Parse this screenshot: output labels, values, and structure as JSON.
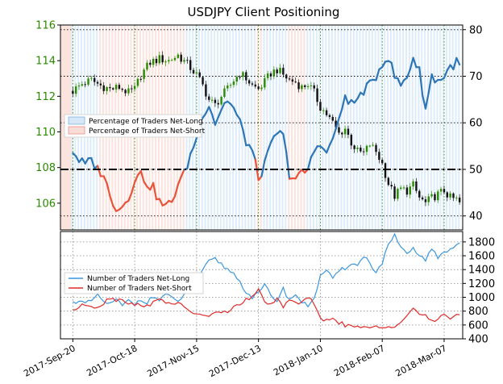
{
  "chart_data": [
    {
      "type": "candlestick+line",
      "title": "USDJPY Client Positioning",
      "left_axis": {
        "ylim": [
          104.5,
          116
        ],
        "ticks": [
          106,
          108,
          110,
          112,
          114,
          116
        ],
        "color": "#2a8a00"
      },
      "right_axis": {
        "ylim": [
          37,
          81
        ],
        "ticks": [
          40,
          50,
          60,
          70,
          80
        ]
      },
      "reference_line_pct": 50,
      "legend": [
        "Percentage of Traders Net-Long",
        "Percentage of Traders Net-Short"
      ],
      "colors": {
        "net_long": "#2e75b6",
        "net_short": "#e8533a",
        "long_fill": "#d6e8f7",
        "short_fill": "#fadcd6",
        "candle_up": "#2a8a00",
        "candle_down": "#111111"
      },
      "price_keypoints": [
        [
          0,
          112.3
        ],
        [
          3,
          112.7
        ],
        [
          6,
          112.9
        ],
        [
          9,
          112.6
        ],
        [
          12,
          112.4
        ],
        [
          15,
          112.5
        ],
        [
          18,
          112.2
        ],
        [
          20,
          112.4
        ],
        [
          22,
          113.2
        ],
        [
          25,
          113.9
        ],
        [
          28,
          114.1
        ],
        [
          31,
          114.0
        ],
        [
          34,
          114.3
        ],
        [
          37,
          113.8
        ],
        [
          40,
          113.2
        ],
        [
          42,
          112.6
        ],
        [
          44,
          111.8
        ],
        [
          46,
          111.5
        ],
        [
          48,
          112.0
        ],
        [
          50,
          112.4
        ],
        [
          52,
          112.9
        ],
        [
          54,
          113.3
        ],
        [
          56,
          113.0
        ],
        [
          58,
          112.6
        ],
        [
          60,
          112.4
        ],
        [
          62,
          112.8
        ],
        [
          64,
          113.3
        ],
        [
          66,
          113.5
        ],
        [
          68,
          113.2
        ],
        [
          70,
          112.9
        ],
        [
          72,
          112.8
        ],
        [
          74,
          112.5
        ],
        [
          76,
          112.7
        ],
        [
          78,
          112.2
        ],
        [
          80,
          111.4
        ],
        [
          82,
          111.0
        ],
        [
          84,
          110.5
        ],
        [
          86,
          109.9
        ],
        [
          88,
          110.2
        ],
        [
          90,
          109.4
        ],
        [
          92,
          108.9
        ],
        [
          94,
          108.8
        ],
        [
          96,
          109.3
        ],
        [
          98,
          108.9
        ],
        [
          100,
          108.2
        ],
        [
          102,
          107.1
        ],
        [
          104,
          106.4
        ],
        [
          106,
          106.8
        ],
        [
          108,
          106.7
        ],
        [
          110,
          107.0
        ],
        [
          112,
          106.3
        ],
        [
          114,
          106.0
        ],
        [
          116,
          106.3
        ],
        [
          118,
          106.5
        ],
        [
          120,
          106.7
        ],
        [
          122,
          106.3
        ],
        [
          124,
          106.2
        ],
        [
          125,
          106.0
        ]
      ],
      "sentiment_pct_keypoints": [
        [
          0,
          54
        ],
        [
          2,
          52
        ],
        [
          4,
          51
        ],
        [
          6,
          52
        ],
        [
          8,
          50
        ],
        [
          10,
          49
        ],
        [
          12,
          44
        ],
        [
          14,
          42
        ],
        [
          16,
          42
        ],
        [
          18,
          44
        ],
        [
          20,
          48
        ],
        [
          22,
          49
        ],
        [
          24,
          47
        ],
        [
          26,
          46
        ],
        [
          28,
          43
        ],
        [
          30,
          42
        ],
        [
          32,
          43
        ],
        [
          34,
          47
        ],
        [
          36,
          49
        ],
        [
          38,
          53
        ],
        [
          40,
          57
        ],
        [
          42,
          62
        ],
        [
          44,
          64
        ],
        [
          46,
          60
        ],
        [
          48,
          63
        ],
        [
          50,
          65
        ],
        [
          52,
          63
        ],
        [
          54,
          60
        ],
        [
          56,
          56
        ],
        [
          58,
          54
        ],
        [
          60,
          48
        ],
        [
          62,
          51
        ],
        [
          64,
          55
        ],
        [
          66,
          58
        ],
        [
          68,
          57
        ],
        [
          70,
          49
        ],
        [
          72,
          48
        ],
        [
          74,
          49
        ],
        [
          76,
          50
        ],
        [
          78,
          54
        ],
        [
          80,
          56
        ],
        [
          82,
          53
        ],
        [
          84,
          57
        ],
        [
          86,
          60
        ],
        [
          88,
          66
        ],
        [
          90,
          64
        ],
        [
          92,
          65
        ],
        [
          94,
          67
        ],
        [
          96,
          68
        ],
        [
          98,
          70
        ],
        [
          100,
          73
        ],
        [
          102,
          74
        ],
        [
          104,
          70
        ],
        [
          106,
          68
        ],
        [
          108,
          70
        ],
        [
          110,
          74
        ],
        [
          112,
          71
        ],
        [
          114,
          63
        ],
        [
          116,
          70
        ],
        [
          118,
          69
        ],
        [
          120,
          70
        ],
        [
          122,
          72
        ],
        [
          124,
          73
        ],
        [
          125,
          72
        ]
      ]
    },
    {
      "type": "line",
      "x_tick_labels": [
        "2017-Sep-20",
        "2017-Oct-18",
        "2017-Nov-15",
        "2017-Dec-13",
        "2018-Jan-10",
        "2018-Feb-07",
        "2018-Mar-07"
      ],
      "x_tick_index": [
        0,
        20,
        40,
        60,
        80,
        100,
        120
      ],
      "x_range": [
        -4,
        126
      ],
      "ylim": [
        400,
        1950
      ],
      "ticks": [
        400,
        600,
        800,
        1000,
        1200,
        1400,
        1600,
        1800
      ],
      "legend": [
        "Number of Traders Net-Long",
        "Number of Traders Net-Short"
      ],
      "series": [
        {
          "name": "Number of Traders Net-Long",
          "color": "#3a97e0",
          "keypoints": [
            [
              0,
              920
            ],
            [
              2,
              960
            ],
            [
              4,
              900
            ],
            [
              6,
              950
            ],
            [
              8,
              1020
            ],
            [
              10,
              940
            ],
            [
              12,
              900
            ],
            [
              14,
              960
            ],
            [
              16,
              880
            ],
            [
              18,
              950
            ],
            [
              20,
              900
            ],
            [
              22,
              980
            ],
            [
              24,
              920
            ],
            [
              26,
              1010
            ],
            [
              28,
              960
            ],
            [
              30,
              1050
            ],
            [
              32,
              980
            ],
            [
              34,
              930
            ],
            [
              36,
              1050
            ],
            [
              38,
              1120
            ],
            [
              40,
              1200
            ],
            [
              42,
              1380
            ],
            [
              44,
              1520
            ],
            [
              46,
              1550
            ],
            [
              48,
              1480
            ],
            [
              50,
              1400
            ],
            [
              52,
              1350
            ],
            [
              54,
              1220
            ],
            [
              56,
              1080
            ],
            [
              58,
              1000
            ],
            [
              60,
              1050
            ],
            [
              62,
              1180
            ],
            [
              64,
              1020
            ],
            [
              66,
              960
            ],
            [
              68,
              1120
            ],
            [
              70,
              960
            ],
            [
              72,
              1050
            ],
            [
              74,
              920
            ],
            [
              76,
              880
            ],
            [
              78,
              1000
            ],
            [
              80,
              1300
            ],
            [
              82,
              1400
            ],
            [
              84,
              1250
            ],
            [
              86,
              1380
            ],
            [
              88,
              1420
            ],
            [
              90,
              1500
            ],
            [
              92,
              1450
            ],
            [
              94,
              1600
            ],
            [
              96,
              1500
            ],
            [
              98,
              1350
            ],
            [
              100,
              1500
            ],
            [
              102,
              1750
            ],
            [
              104,
              1900
            ],
            [
              106,
              1700
            ],
            [
              108,
              1620
            ],
            [
              110,
              1700
            ],
            [
              112,
              1600
            ],
            [
              114,
              1550
            ],
            [
              116,
              1680
            ],
            [
              118,
              1580
            ],
            [
              120,
              1650
            ],
            [
              122,
              1700
            ],
            [
              124,
              1750
            ],
            [
              125,
              1780
            ]
          ]
        },
        {
          "name": "Number of Traders Net-Short",
          "color": "#e02a2a",
          "keypoints": [
            [
              0,
              820
            ],
            [
              2,
              850
            ],
            [
              4,
              900
            ],
            [
              6,
              880
            ],
            [
              8,
              860
            ],
            [
              10,
              920
            ],
            [
              12,
              1000
            ],
            [
              14,
              960
            ],
            [
              16,
              980
            ],
            [
              18,
              920
            ],
            [
              20,
              880
            ],
            [
              22,
              900
            ],
            [
              24,
              880
            ],
            [
              26,
              920
            ],
            [
              28,
              960
            ],
            [
              30,
              940
            ],
            [
              32,
              920
            ],
            [
              34,
              900
            ],
            [
              36,
              860
            ],
            [
              38,
              800
            ],
            [
              40,
              760
            ],
            [
              42,
              720
            ],
            [
              44,
              740
            ],
            [
              46,
              780
            ],
            [
              48,
              760
            ],
            [
              50,
              800
            ],
            [
              52,
              860
            ],
            [
              54,
              900
            ],
            [
              56,
              960
            ],
            [
              58,
              1000
            ],
            [
              60,
              1100
            ],
            [
              62,
              960
            ],
            [
              64,
              880
            ],
            [
              66,
              960
            ],
            [
              68,
              860
            ],
            [
              70,
              980
            ],
            [
              72,
              900
            ],
            [
              74,
              960
            ],
            [
              76,
              1000
            ],
            [
              78,
              900
            ],
            [
              80,
              680
            ],
            [
              82,
              660
            ],
            [
              84,
              720
            ],
            [
              86,
              640
            ],
            [
              88,
              600
            ],
            [
              90,
              580
            ],
            [
              92,
              560
            ],
            [
              94,
              560
            ],
            [
              96,
              540
            ],
            [
              98,
              580
            ],
            [
              100,
              560
            ],
            [
              102,
              600
            ],
            [
              104,
              580
            ],
            [
              106,
              640
            ],
            [
              108,
              720
            ],
            [
              110,
              860
            ],
            [
              112,
              760
            ],
            [
              114,
              720
            ],
            [
              116,
              640
            ],
            [
              118,
              700
            ],
            [
              120,
              760
            ],
            [
              122,
              700
            ],
            [
              124,
              740
            ],
            [
              125,
              720
            ]
          ]
        }
      ]
    }
  ]
}
